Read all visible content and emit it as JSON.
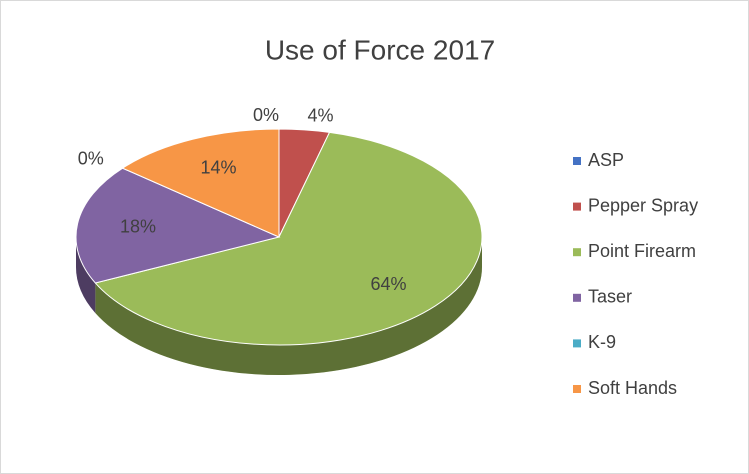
{
  "chart_data": {
    "type": "pie",
    "title": "Use of Force 2017",
    "categories": [
      "ASP",
      "Pepper Spray",
      "Point Firearm",
      "Taser",
      "K-9",
      "Soft Hands"
    ],
    "values": [
      0,
      4,
      64,
      18,
      0,
      14
    ],
    "value_labels": [
      "0%",
      "4%",
      "64%",
      "18%",
      "0%",
      "14%"
    ],
    "colors": [
      "#4472c4",
      "#c0504d",
      "#9bbb59",
      "#8064a2",
      "#4bacc6",
      "#f79646"
    ],
    "legend": "right"
  }
}
